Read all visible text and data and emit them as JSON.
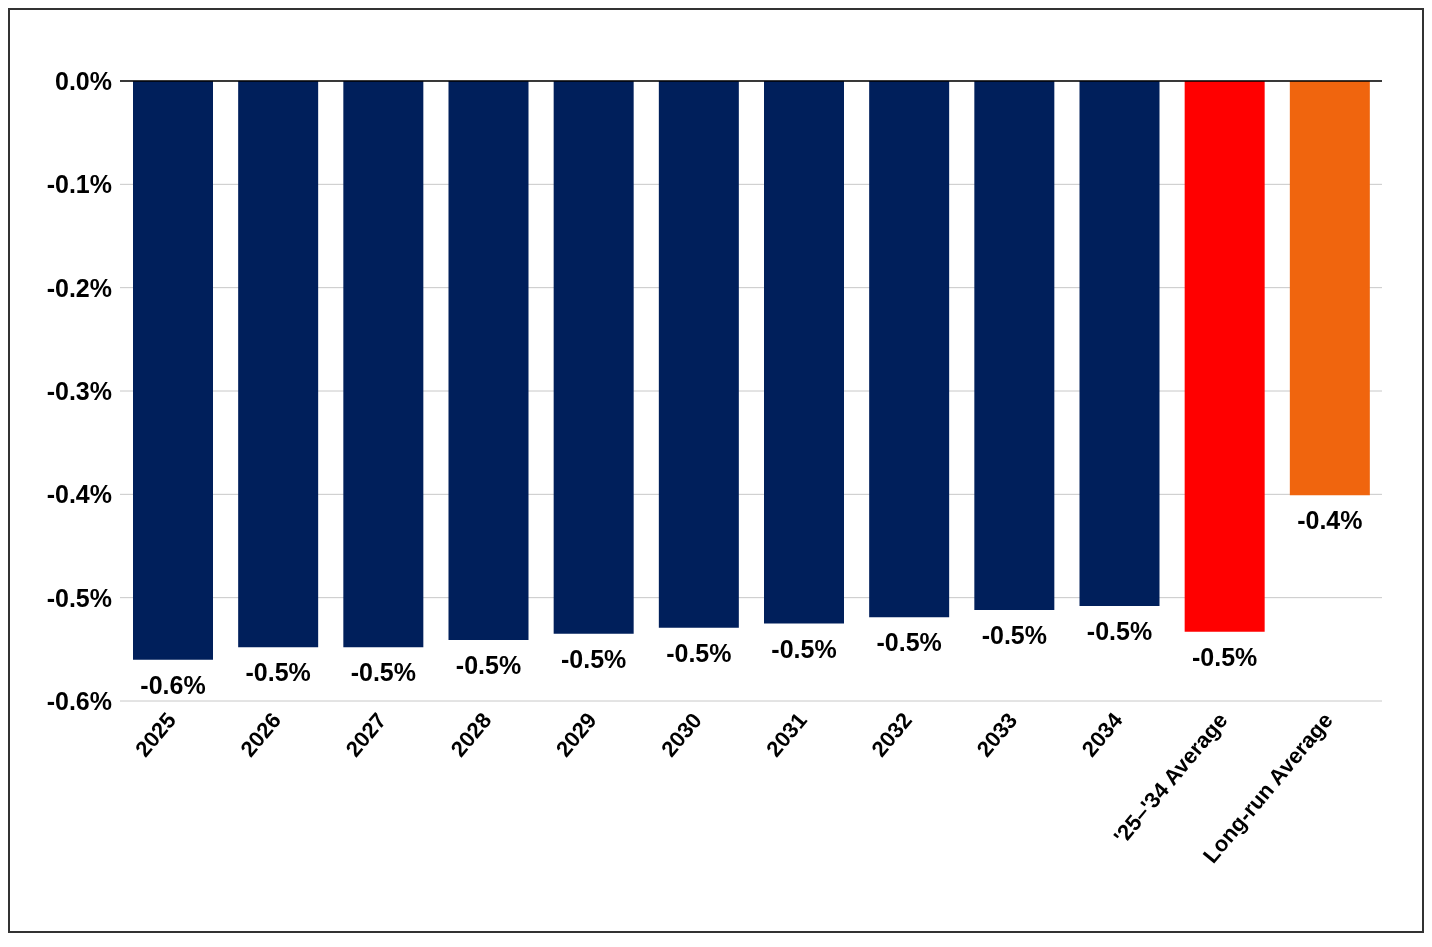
{
  "chart_data": {
    "type": "bar",
    "categories": [
      "2025",
      "2026",
      "2027",
      "2028",
      "2029",
      "2030",
      "2031",
      "2032",
      "2033",
      "2034",
      "'25–'34 Average",
      "Long-run Average"
    ],
    "values": [
      -0.56,
      -0.548,
      -0.548,
      -0.541,
      -0.535,
      -0.529,
      -0.525,
      -0.519,
      -0.512,
      -0.508,
      -0.533,
      -0.401
    ],
    "colors": [
      "#001f5b",
      "#001f5b",
      "#001f5b",
      "#001f5b",
      "#001f5b",
      "#001f5b",
      "#001f5b",
      "#001f5b",
      "#001f5b",
      "#001f5b",
      "#ff0000",
      "#f0650e"
    ],
    "value_labels": [
      "-0.6%",
      "-0.5%",
      "-0.5%",
      "-0.5%",
      "-0.5%",
      "-0.5%",
      "-0.5%",
      "-0.5%",
      "-0.5%",
      "-0.5%",
      "-0.5%",
      "-0.4%"
    ],
    "ylim": [
      -0.6,
      0
    ],
    "yticks": [
      {
        "value": 0,
        "label": "0.0%"
      },
      {
        "value": -0.1,
        "label": "-0.1%"
      },
      {
        "value": -0.2,
        "label": "-0.2%"
      },
      {
        "value": -0.3,
        "label": "-0.3%"
      },
      {
        "value": -0.4,
        "label": "-0.4%"
      },
      {
        "value": -0.5,
        "label": "-0.5%"
      },
      {
        "value": -0.6,
        "label": "-0.6%"
      }
    ],
    "grid": "y"
  }
}
